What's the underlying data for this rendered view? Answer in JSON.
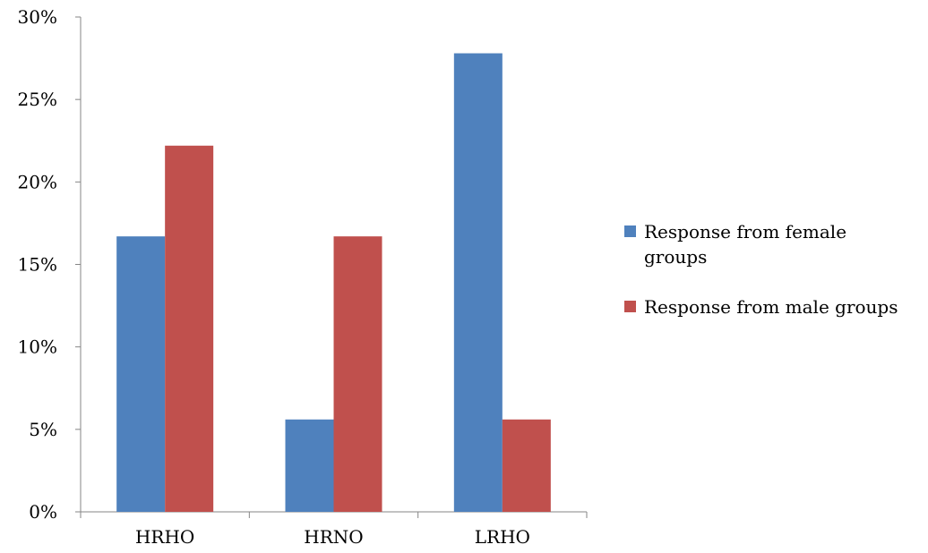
{
  "chart_data": {
    "type": "bar",
    "categories": [
      "HRHO",
      "HRNO",
      "LRHO"
    ],
    "series": [
      {
        "name": "Response from female groups",
        "values": [
          16.7,
          5.6,
          27.8
        ],
        "color": "#4F81BD"
      },
      {
        "name": "Response from male groups",
        "values": [
          22.2,
          16.7,
          5.6
        ],
        "color": "#C0504D"
      }
    ],
    "ylim": [
      0,
      30
    ],
    "yticks": [
      0,
      5,
      10,
      15,
      20,
      25,
      30
    ],
    "ytick_labels": [
      "0%",
      "5%",
      "10%",
      "15%",
      "20%",
      "25%",
      "30%"
    ],
    "legend": {
      "placement": "right",
      "entries": [
        {
          "lines": [
            "Response from female",
            "groups"
          ]
        },
        {
          "lines": [
            "Response from male groups"
          ]
        }
      ]
    },
    "title": "",
    "xlabel": "",
    "ylabel": "",
    "grid": false
  }
}
